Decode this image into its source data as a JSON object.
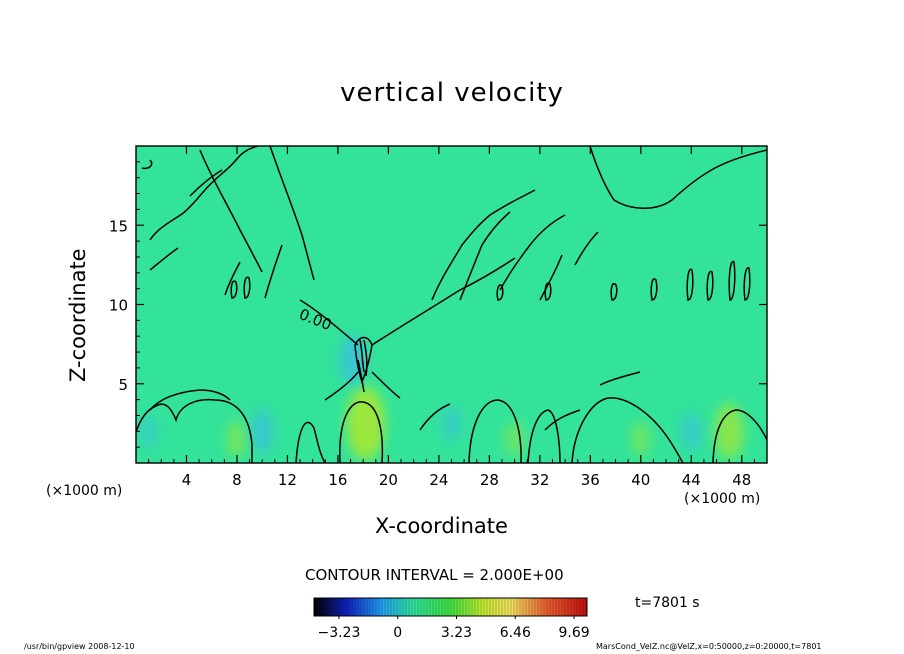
{
  "chart_data": {
    "type": "heatmap",
    "title": "vertical velocity",
    "xlabel": "X-coordinate",
    "ylabel": "Z-coordinate",
    "x_unit": "(×1000 m)",
    "xlim": [
      0,
      50
    ],
    "ylim": [
      0,
      20
    ],
    "x_ticks": [
      4,
      8,
      12,
      16,
      20,
      24,
      28,
      32,
      36,
      40,
      44,
      48
    ],
    "y_ticks": [
      5,
      10,
      15
    ],
    "contour_interval": "CONTOUR INTERVAL = 2.000E+00",
    "contour_label": "0.00",
    "colorbar": {
      "range": [
        -4.6,
        10.4
      ],
      "tick_values": [
        -3.23,
        0,
        3.23,
        6.46,
        9.69
      ],
      "tick_labels": [
        "−3.23",
        "0",
        "3.23",
        "6.46",
        "9.69"
      ]
    },
    "time_label": "t=7801 s",
    "features": [
      {
        "kind": "updraft",
        "x": 18.2,
        "z": 2.5,
        "w": 4.5
      },
      {
        "kind": "updraft",
        "x": 47,
        "z": 2.0,
        "w": 3.0
      },
      {
        "kind": "updraft",
        "x": 8,
        "z": 1.5,
        "w": 1.5
      },
      {
        "kind": "updraft",
        "x": 30,
        "z": 1.5,
        "w": 1.2
      },
      {
        "kind": "updraft",
        "x": 40,
        "z": 1.5,
        "w": 1.2
      },
      {
        "kind": "downdraft",
        "x": 10,
        "z": 2.0,
        "w": -2.0
      },
      {
        "kind": "downdraft",
        "x": 17.2,
        "z": 6.5,
        "w": -2.5
      },
      {
        "kind": "downdraft",
        "x": 44,
        "z": 2.0,
        "w": -1.5
      },
      {
        "kind": "downdraft",
        "x": 25,
        "z": 2.5,
        "w": -1.2
      },
      {
        "kind": "downdraft",
        "x": 1,
        "z": 2.0,
        "w": -1.0
      }
    ],
    "grid": false
  },
  "footer": {
    "left": "/usr/bin/gpview   2008-12-10",
    "right": "MarsCond_VelZ.nc@VelZ,x=0:50000,z=0:20000,t=7801"
  },
  "colors": {
    "background_field": "#33e39a",
    "updraft": "#a8e832",
    "downdraft": "#3ab8ee"
  }
}
